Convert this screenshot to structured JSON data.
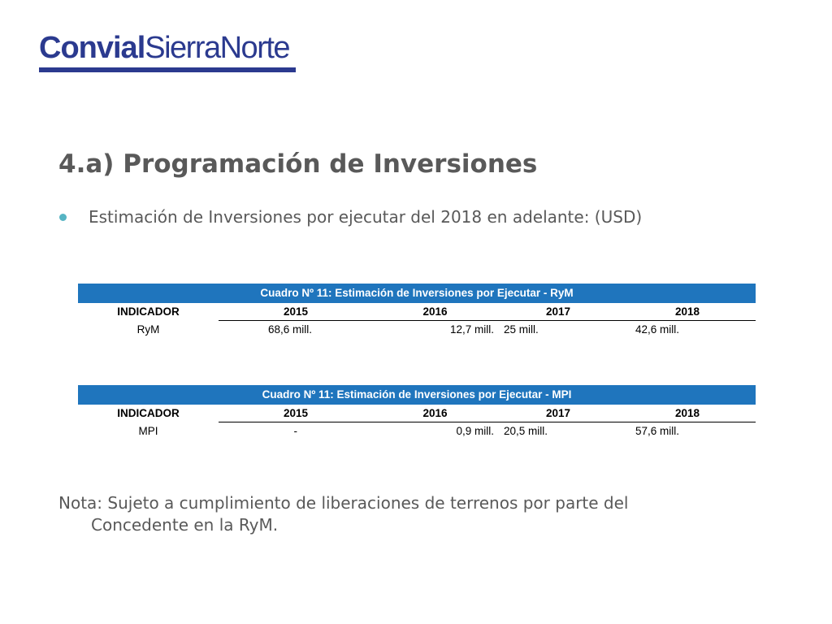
{
  "logo": {
    "part1": "Convial",
    "part2": "SierraNorte"
  },
  "title": "4.a) Programación de Inversiones",
  "bullet": "Estimación de Inversiones por ejecutar del 2018 en adelante: (USD)",
  "tables": [
    {
      "caption": "Cuadro Nº 11: Estimación de Inversiones por Ejecutar - RyM",
      "headers": [
        "INDICADOR",
        "2015",
        "2016",
        "2017",
        "2018"
      ],
      "row": [
        "RyM",
        "68,6 mill.",
        "12,7 mill.",
        "25 mill.",
        "42,6 mill."
      ]
    },
    {
      "caption": "Cuadro Nº 11: Estimación de Inversiones por Ejecutar - MPI",
      "headers": [
        "INDICADOR",
        "2015",
        "2016",
        "2017",
        "2018"
      ],
      "row": [
        "MPI",
        "-",
        "0,9 mill.",
        "20,5 mill.",
        "57,6 mill."
      ]
    }
  ],
  "note": {
    "line1": "Nota: Sujeto a cumplimiento de liberaciones de terrenos por parte del",
    "line2": "Concedente en la RyM."
  },
  "colors": {
    "logo": "#2b3a8f",
    "table_header": "#1f75bd",
    "bullet": "#56b4c3",
    "text": "#595959"
  }
}
